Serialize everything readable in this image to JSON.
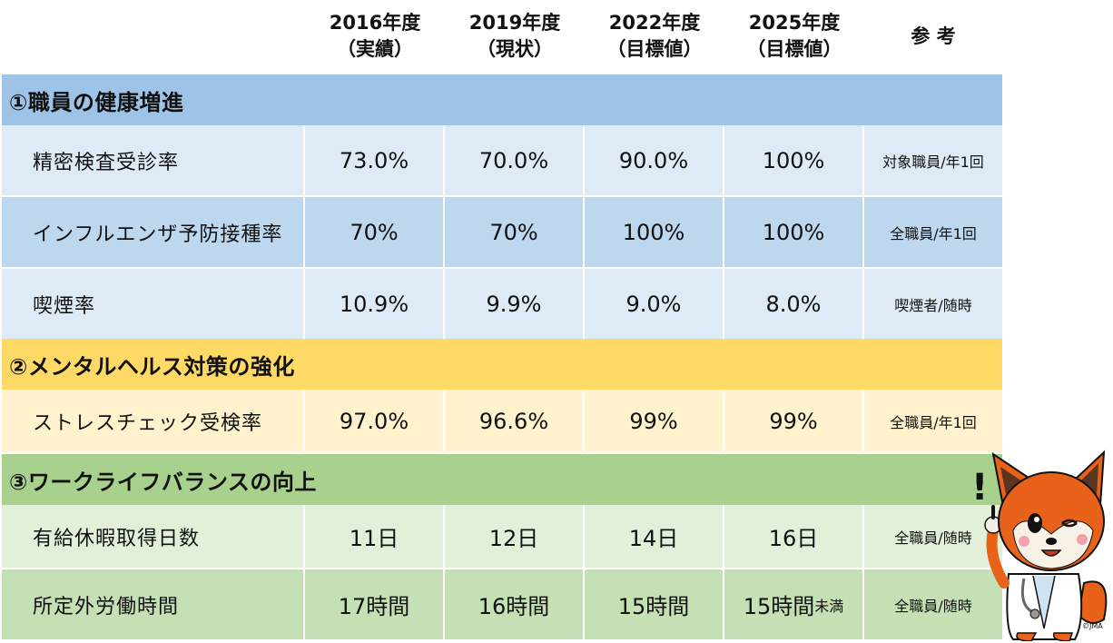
{
  "header": {
    "col1": {
      "year": "2016年度",
      "note": "（実績）"
    },
    "col2": {
      "year": "2019年度",
      "note": "（現状）"
    },
    "col3": {
      "year": "2022年度",
      "note": "（目標値）"
    },
    "col4": {
      "year": "2025年度",
      "note": "（目標値）"
    },
    "ref": "参 考"
  },
  "sections": {
    "s1": {
      "title": "①職員の健康増進",
      "rows": [
        {
          "label": "精密検査受診率",
          "v1": "73.0%",
          "v2": "70.0%",
          "v3": "90.0%",
          "v4": "100%",
          "ref": "対象職員/年1回"
        },
        {
          "label": "インフルエンザ予防接種率",
          "v1": "70%",
          "v2": "70%",
          "v3": "100%",
          "v4": "100%",
          "ref": "全職員/年1回"
        },
        {
          "label": "喫煙率",
          "v1": "10.9%",
          "v2": "9.9%",
          "v3": "9.0%",
          "v4": "8.0%",
          "ref": "喫煙者/随時"
        }
      ]
    },
    "s2": {
      "title": "②メンタルヘルス対策の強化",
      "rows": [
        {
          "label": "ストレスチェック受検率",
          "v1": "97.0%",
          "v2": "96.6%",
          "v3": "99%",
          "v4": "99%",
          "ref": "全職員/年1回"
        }
      ]
    },
    "s3": {
      "title": "③ワークライフバランスの向上",
      "rows": [
        {
          "label": "有給休暇取得日数",
          "v1": "11日",
          "v2": "12日",
          "v3": "14日",
          "v4": "16日",
          "ref": "全職員/随時"
        },
        {
          "label": "所定外労働時間",
          "v1": "17時間",
          "v2": "16時間",
          "v3": "15時間",
          "v4": "15時間",
          "v4_suffix": "未満",
          "ref": "全職員/随時"
        }
      ]
    }
  },
  "mascot": {
    "mark": "!",
    "credit": "©JMA"
  },
  "colors": {
    "s1_header": "#9dc3e6",
    "s1_row_light": "#deebf7",
    "s1_row_dark": "#bdd7ee",
    "s2_header": "#ffd966",
    "s2_row": "#fff2cc",
    "s3_header": "#a9d18e",
    "s3_row_light": "#e2f0d9",
    "s3_row_dark": "#c5e0b4"
  }
}
